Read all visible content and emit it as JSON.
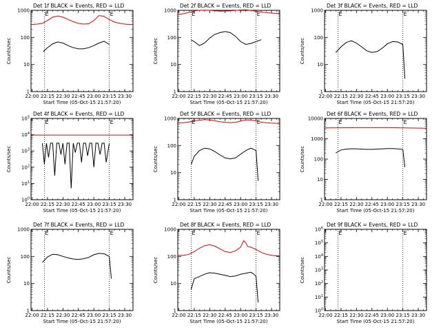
{
  "xticks": [
    "22:00",
    "22:15",
    "22:30",
    "22:45",
    "23:00",
    "23:15",
    "23:30"
  ],
  "xlabel": "Start Time (05-Oct-15 21:57:20)",
  "ylabel": "Counts/sec",
  "series_colors": {
    "events": "#000000",
    "lld": "#dd0000"
  },
  "marker_label": "E",
  "chart_data": [
    {
      "type": "line",
      "title": "Det 1f BLACK = Events, RED = LLD",
      "xlim": [
        "21:59",
        "23:38"
      ],
      "ylim": [
        1,
        1000
      ],
      "yscale": "log",
      "grid": false,
      "yticks": [
        "1",
        "10",
        "100",
        "1000"
      ],
      "markers": [
        "22:12",
        "23:15"
      ],
      "series": [
        {
          "color": "red",
          "x": [
            "21:59",
            "22:05",
            "22:10",
            "22:15",
            "22:20",
            "22:25",
            "22:30",
            "22:35",
            "22:40",
            "22:45",
            "22:50",
            "22:55",
            "23:00",
            "23:05",
            "23:10",
            "23:15",
            "23:20",
            "23:25",
            "23:30",
            "23:35",
            "23:38"
          ],
          "values": [
            300,
            310,
            330,
            420,
            560,
            610,
            560,
            460,
            380,
            330,
            310,
            320,
            420,
            640,
            600,
            460,
            370,
            330,
            310,
            300,
            300
          ]
        },
        {
          "color": "black",
          "x": [
            "22:11",
            "22:15",
            "22:20",
            "22:25",
            "22:30",
            "22:35",
            "22:40",
            "22:45",
            "22:50",
            "22:55",
            "23:00",
            "23:05",
            "23:10",
            "23:15"
          ],
          "values": [
            30,
            42,
            58,
            68,
            62,
            50,
            42,
            38,
            38,
            42,
            50,
            62,
            72,
            55
          ]
        }
      ]
    },
    {
      "type": "line",
      "title": "Det 2f BLACK = Events, RED = LLD",
      "xlim": [
        "21:59",
        "23:38"
      ],
      "ylim": [
        1,
        1000
      ],
      "yscale": "log",
      "grid": false,
      "yticks": [
        "1",
        "10",
        "100",
        "1000"
      ],
      "markers": [
        "22:12",
        "23:15"
      ],
      "series": [
        {
          "color": "red",
          "x": [
            "21:59",
            "22:05",
            "22:10",
            "22:15",
            "22:20",
            "22:25",
            "22:30",
            "22:35",
            "22:40",
            "22:45",
            "22:50",
            "22:55",
            "23:00",
            "23:05",
            "23:10",
            "23:15",
            "23:20",
            "23:25",
            "23:30",
            "23:35",
            "23:38"
          ],
          "values": [
            700,
            760,
            840,
            950,
            1000,
            1020,
            1000,
            960,
            940,
            940,
            960,
            990,
            1030,
            1050,
            1000,
            920,
            860,
            820,
            790,
            770,
            760
          ]
        },
        {
          "color": "black",
          "x": [
            "22:12",
            "22:15",
            "22:20",
            "22:25",
            "22:30",
            "22:35",
            "22:40",
            "22:45",
            "22:50",
            "22:55",
            "23:00",
            "23:05",
            "23:10",
            "23:15",
            "23:20"
          ],
          "values": [
            80,
            70,
            50,
            62,
            95,
            130,
            150,
            165,
            150,
            110,
            70,
            55,
            60,
            70,
            82
          ]
        }
      ]
    },
    {
      "type": "line",
      "title": "Det 3f BLACK = Events, RED = LLD",
      "xlim": [
        "21:59",
        "23:38"
      ],
      "ylim": [
        1,
        1000
      ],
      "yscale": "log",
      "grid": false,
      "yticks": [
        "1",
        "10",
        "100",
        "1000"
      ],
      "markers": [
        "22:12",
        "23:15"
      ],
      "series": [
        {
          "color": "black",
          "x": [
            "22:10",
            "22:15",
            "22:20",
            "22:25",
            "22:30",
            "22:35",
            "22:40",
            "22:45",
            "22:50",
            "22:55",
            "23:00",
            "23:05",
            "23:10",
            "23:15",
            "23:17"
          ],
          "values": [
            28,
            45,
            65,
            75,
            62,
            45,
            32,
            28,
            30,
            40,
            58,
            70,
            68,
            55,
            3
          ]
        }
      ]
    },
    {
      "type": "line",
      "title": "Det 4f BLACK = Events, RED = LLD",
      "xlim": [
        "21:59",
        "23:38"
      ],
      "ylim": [
        1,
        100000
      ],
      "yscale": "log",
      "grid": false,
      "yticks": [
        "10^0",
        "10^1",
        "10^2",
        "10^3",
        "10^4",
        "10^5"
      ],
      "markers": [
        "22:12",
        "23:15"
      ],
      "series": [
        {
          "color": "red",
          "x": [
            "21:59",
            "23:38"
          ],
          "values": [
            9500,
            9500
          ]
        },
        {
          "color": "black",
          "x": [
            "22:10",
            "22:12",
            "22:14",
            "22:16",
            "22:18",
            "22:20",
            "22:22",
            "22:24",
            "22:26",
            "22:28",
            "22:30",
            "22:32",
            "22:34",
            "22:36",
            "22:38",
            "22:40",
            "22:42",
            "22:44",
            "22:46",
            "22:48",
            "22:50",
            "22:52",
            "22:54",
            "22:56",
            "22:58",
            "23:00",
            "23:02",
            "23:04",
            "23:06",
            "23:08",
            "23:10",
            "23:12",
            "23:15"
          ],
          "values": [
            3000,
            150,
            3000,
            400,
            3000,
            3000,
            30,
            3000,
            3000,
            600,
            3000,
            150,
            3000,
            3000,
            5,
            3000,
            800,
            3000,
            3000,
            200,
            3000,
            3000,
            500,
            3000,
            3000,
            100,
            3000,
            3000,
            600,
            3000,
            3000,
            200,
            3000
          ]
        }
      ]
    },
    {
      "type": "line",
      "title": "Det 5f BLACK = Events, RED = LLD",
      "xlim": [
        "21:59",
        "23:38"
      ],
      "ylim": [
        1,
        1000
      ],
      "yscale": "log",
      "grid": false,
      "yticks": [
        "1",
        "10",
        "100",
        "1000"
      ],
      "markers": [
        "22:12",
        "23:15"
      ],
      "series": [
        {
          "color": "red",
          "x": [
            "21:59",
            "22:05",
            "22:10",
            "22:15",
            "22:20",
            "22:25",
            "22:30",
            "22:35",
            "22:40",
            "22:45",
            "22:50",
            "22:55",
            "23:00",
            "23:05",
            "23:10",
            "23:15",
            "23:20",
            "23:25",
            "23:30",
            "23:35",
            "23:38"
          ],
          "values": [
            680,
            700,
            740,
            800,
            860,
            900,
            880,
            820,
            760,
            720,
            700,
            720,
            800,
            880,
            880,
            800,
            730,
            690,
            670,
            660,
            660
          ]
        },
        {
          "color": "black",
          "x": [
            "22:12",
            "22:15",
            "22:20",
            "22:25",
            "22:30",
            "22:35",
            "22:40",
            "22:45",
            "22:50",
            "22:55",
            "23:00",
            "23:05",
            "23:10",
            "23:15",
            "23:17"
          ],
          "values": [
            20,
            40,
            65,
            80,
            75,
            60,
            45,
            35,
            32,
            35,
            48,
            65,
            80,
            65,
            5
          ]
        }
      ]
    },
    {
      "type": "line",
      "title": "Det 6f BLACK = Events, RED = LLD",
      "xlim": [
        "21:59",
        "23:38"
      ],
      "ylim": [
        1,
        10000
      ],
      "yscale": "log",
      "grid": false,
      "yticks": [
        "1",
        "10",
        "100",
        "1000",
        "10000"
      ],
      "markers": [
        "22:12",
        "23:15"
      ],
      "series": [
        {
          "color": "red",
          "x": [
            "21:59",
            "22:30",
            "23:00",
            "23:38"
          ],
          "values": [
            3400,
            3500,
            3500,
            3300
          ]
        },
        {
          "color": "black",
          "x": [
            "22:10",
            "22:15",
            "22:20",
            "22:25",
            "22:30",
            "22:35",
            "22:40",
            "22:45",
            "22:50",
            "22:55",
            "23:00",
            "23:05",
            "23:10",
            "23:15",
            "23:17"
          ],
          "values": [
            200,
            280,
            310,
            320,
            320,
            310,
            300,
            300,
            310,
            320,
            330,
            330,
            320,
            300,
            40
          ]
        }
      ]
    },
    {
      "type": "line",
      "title": "Det 7f BLACK = Events, RED = LLD",
      "xlim": [
        "21:59",
        "23:38"
      ],
      "ylim": [
        1,
        1000
      ],
      "yscale": "log",
      "grid": false,
      "yticks": [
        "1",
        "10",
        "100",
        "1000"
      ],
      "markers": [
        "22:12",
        "23:15"
      ],
      "series": [
        {
          "color": "black",
          "x": [
            "22:10",
            "22:15",
            "22:20",
            "22:25",
            "22:30",
            "22:35",
            "22:40",
            "22:45",
            "22:50",
            "22:55",
            "23:00",
            "23:05",
            "23:10",
            "23:15",
            "23:17"
          ],
          "values": [
            60,
            95,
            120,
            115,
            100,
            88,
            80,
            78,
            82,
            92,
            115,
            130,
            125,
            100,
            15
          ]
        }
      ]
    },
    {
      "type": "line",
      "title": "Det 8f BLACK = Events, RED = LLD",
      "xlim": [
        "21:59",
        "23:38"
      ],
      "ylim": [
        1,
        1000
      ],
      "yscale": "log",
      "grid": false,
      "yticks": [
        "1",
        "10",
        "100",
        "1000"
      ],
      "markers": [
        "22:12",
        "23:15"
      ],
      "series": [
        {
          "color": "red",
          "x": [
            "21:59",
            "22:05",
            "22:10",
            "22:15",
            "22:20",
            "22:25",
            "22:30",
            "22:35",
            "22:40",
            "22:45",
            "22:50",
            "22:55",
            "23:00",
            "23:03",
            "23:05",
            "23:07",
            "23:10",
            "23:15",
            "23:20",
            "23:25",
            "23:30",
            "23:35",
            "23:38"
          ],
          "values": [
            110,
            110,
            120,
            150,
            200,
            250,
            270,
            240,
            190,
            150,
            140,
            160,
            220,
            380,
            320,
            230,
            220,
            180,
            140,
            120,
            110,
            105,
            105
          ]
        },
        {
          "color": "black",
          "x": [
            "22:12",
            "22:15",
            "22:20",
            "22:25",
            "22:30",
            "22:35",
            "22:40",
            "22:45",
            "22:50",
            "22:55",
            "23:00",
            "23:05",
            "23:10",
            "23:13",
            "23:15",
            "23:17"
          ],
          "values": [
            6,
            15,
            18,
            22,
            25,
            24,
            22,
            20,
            18,
            19,
            22,
            24,
            26,
            22,
            18,
            2
          ]
        }
      ]
    },
    {
      "type": "line",
      "title": "Det 9f BLACK = Events, RED = LLD",
      "xlim": [
        "21:59",
        "23:38"
      ],
      "ylim": [
        1,
        1000000
      ],
      "yscale": "log",
      "grid": false,
      "yticks": [
        "10^0",
        "10^1",
        "10^2",
        "10^3",
        "10^4",
        "10^5",
        "10^6"
      ],
      "markers": [
        "22:12",
        "23:15"
      ],
      "series": []
    }
  ]
}
